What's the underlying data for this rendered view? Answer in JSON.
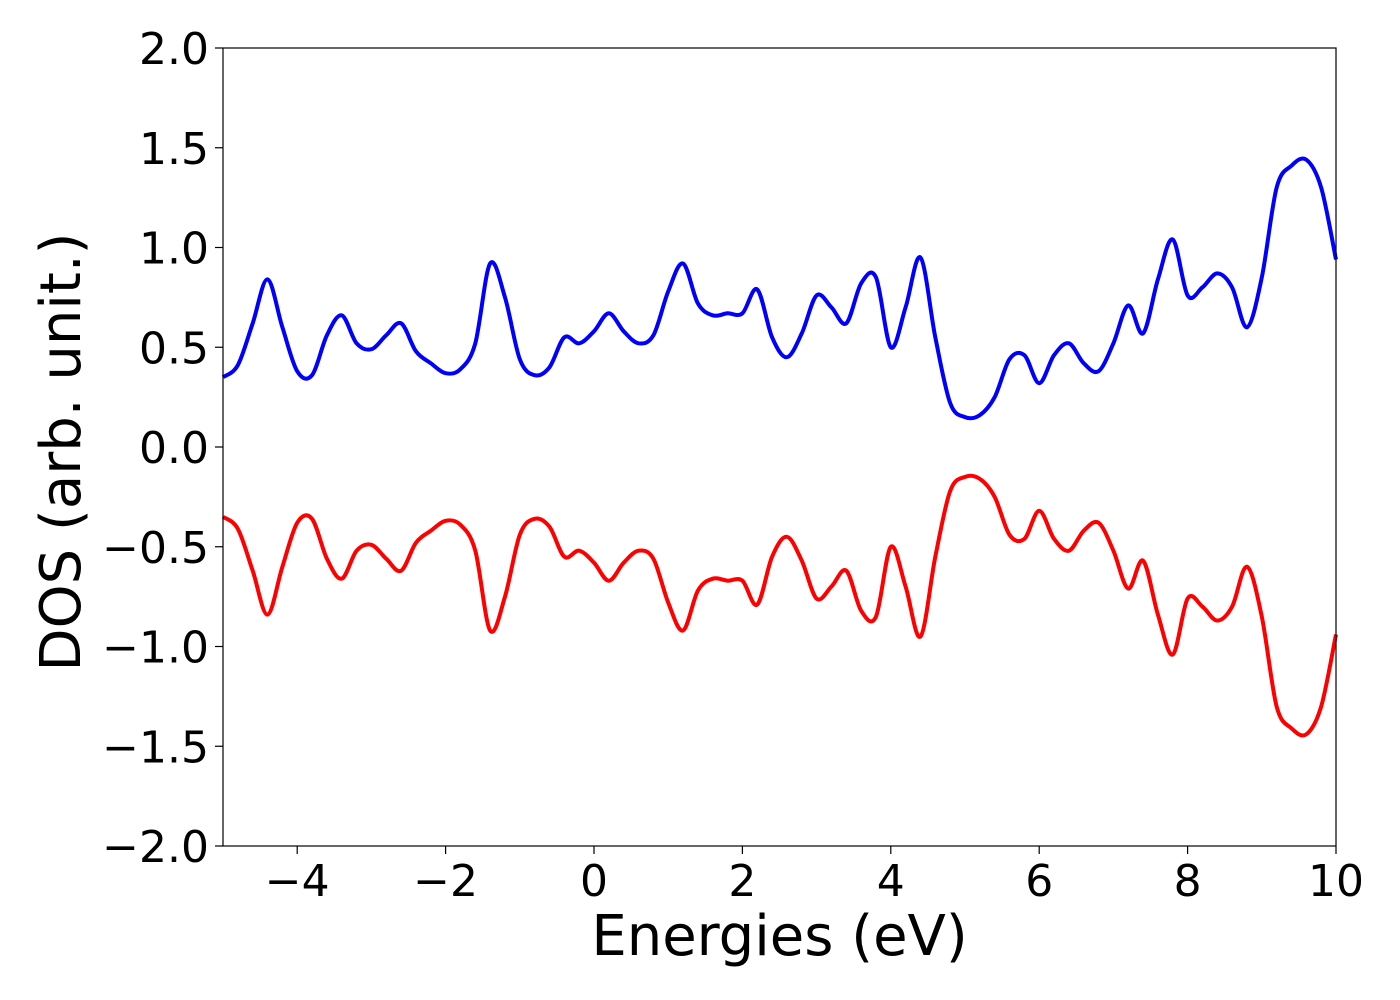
{
  "chart_data": {
    "type": "line",
    "title": "",
    "xlabel": "Energies (eV)",
    "ylabel": "DOS (arb. unit.)",
    "xlim": [
      -5,
      10
    ],
    "ylim": [
      -2.0,
      2.0
    ],
    "grid": false,
    "legend": "none",
    "xticks": [
      -4,
      -2,
      0,
      2,
      4,
      6,
      8,
      10
    ],
    "xtick_labels": [
      "−4",
      "−2",
      "0",
      "2",
      "4",
      "6",
      "8",
      "10"
    ],
    "yticks": [
      -2.0,
      -1.5,
      -1.0,
      -0.5,
      0.0,
      0.5,
      1.0,
      1.5,
      2.0
    ],
    "ytick_labels": [
      "−2.0",
      "−1.5",
      "−1.0",
      "−0.5",
      "0.0",
      "0.5",
      "1.0",
      "1.5",
      "2.0"
    ],
    "series": [
      {
        "color": "#0000ff",
        "x": [
          -5.0,
          -4.8,
          -4.6,
          -4.4,
          -4.2,
          -4.0,
          -3.8,
          -3.6,
          -3.4,
          -3.2,
          -3.0,
          -2.8,
          -2.6,
          -2.4,
          -2.2,
          -2.0,
          -1.8,
          -1.6,
          -1.4,
          -1.2,
          -1.0,
          -0.8,
          -0.6,
          -0.4,
          -0.2,
          0.0,
          0.2,
          0.4,
          0.6,
          0.8,
          1.0,
          1.2,
          1.4,
          1.6,
          1.8,
          2.0,
          2.2,
          2.4,
          2.6,
          2.8,
          3.0,
          3.2,
          3.4,
          3.6,
          3.8,
          4.0,
          4.2,
          4.4,
          4.6,
          4.8,
          5.0,
          5.2,
          5.4,
          5.6,
          5.8,
          6.0,
          6.2,
          6.4,
          6.6,
          6.8,
          7.0,
          7.2,
          7.4,
          7.6,
          7.8,
          8.0,
          8.2,
          8.4,
          8.6,
          8.8,
          9.0,
          9.2,
          9.4,
          9.6,
          9.8,
          10.0
        ],
        "y": [
          0.35,
          0.41,
          0.62,
          0.84,
          0.6,
          0.38,
          0.36,
          0.56,
          0.66,
          0.52,
          0.49,
          0.56,
          0.62,
          0.48,
          0.42,
          0.37,
          0.39,
          0.52,
          0.92,
          0.75,
          0.44,
          0.36,
          0.4,
          0.55,
          0.52,
          0.58,
          0.67,
          0.58,
          0.52,
          0.56,
          0.78,
          0.92,
          0.72,
          0.66,
          0.67,
          0.67,
          0.79,
          0.55,
          0.45,
          0.57,
          0.76,
          0.7,
          0.62,
          0.82,
          0.85,
          0.5,
          0.7,
          0.95,
          0.55,
          0.22,
          0.15,
          0.16,
          0.25,
          0.44,
          0.46,
          0.32,
          0.46,
          0.52,
          0.42,
          0.38,
          0.52,
          0.71,
          0.57,
          0.84,
          1.04,
          0.76,
          0.8,
          0.87,
          0.8,
          0.6,
          0.85,
          1.3,
          1.41,
          1.44,
          1.3,
          0.94
        ]
      },
      {
        "color": "#ff0000",
        "x": [
          -5.0,
          -4.8,
          -4.6,
          -4.4,
          -4.2,
          -4.0,
          -3.8,
          -3.6,
          -3.4,
          -3.2,
          -3.0,
          -2.8,
          -2.6,
          -2.4,
          -2.2,
          -2.0,
          -1.8,
          -1.6,
          -1.4,
          -1.2,
          -1.0,
          -0.8,
          -0.6,
          -0.4,
          -0.2,
          0.0,
          0.2,
          0.4,
          0.6,
          0.8,
          1.0,
          1.2,
          1.4,
          1.6,
          1.8,
          2.0,
          2.2,
          2.4,
          2.6,
          2.8,
          3.0,
          3.2,
          3.4,
          3.6,
          3.8,
          4.0,
          4.2,
          4.4,
          4.6,
          4.8,
          5.0,
          5.2,
          5.4,
          5.6,
          5.8,
          6.0,
          6.2,
          6.4,
          6.6,
          6.8,
          7.0,
          7.2,
          7.4,
          7.6,
          7.8,
          8.0,
          8.2,
          8.4,
          8.6,
          8.8,
          9.0,
          9.2,
          9.4,
          9.6,
          9.8,
          10.0
        ],
        "y": [
          -0.35,
          -0.41,
          -0.62,
          -0.84,
          -0.6,
          -0.38,
          -0.36,
          -0.56,
          -0.66,
          -0.52,
          -0.49,
          -0.56,
          -0.62,
          -0.48,
          -0.42,
          -0.37,
          -0.39,
          -0.52,
          -0.92,
          -0.75,
          -0.44,
          -0.36,
          -0.4,
          -0.55,
          -0.52,
          -0.58,
          -0.67,
          -0.58,
          -0.52,
          -0.56,
          -0.78,
          -0.92,
          -0.72,
          -0.66,
          -0.67,
          -0.67,
          -0.79,
          -0.55,
          -0.45,
          -0.57,
          -0.76,
          -0.7,
          -0.62,
          -0.82,
          -0.85,
          -0.5,
          -0.7,
          -0.95,
          -0.55,
          -0.22,
          -0.15,
          -0.16,
          -0.25,
          -0.44,
          -0.46,
          -0.32,
          -0.46,
          -0.52,
          -0.42,
          -0.38,
          -0.52,
          -0.71,
          -0.57,
          -0.84,
          -1.04,
          -0.76,
          -0.8,
          -0.87,
          -0.8,
          -0.6,
          -0.85,
          -1.3,
          -1.41,
          -1.44,
          -1.3,
          -0.94
        ]
      }
    ]
  }
}
